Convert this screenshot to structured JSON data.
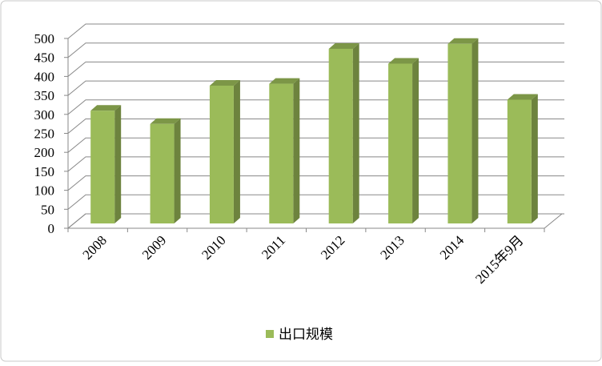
{
  "chart_data": {
    "type": "bar3d",
    "categories": [
      "2008",
      "2009",
      "2010",
      "2011",
      "2012",
      "2013",
      "2014",
      "2015年9月"
    ],
    "series": [
      {
        "name": "出口规模",
        "color": "#9bbb59",
        "values": [
          297,
          262,
          363,
          368,
          460,
          421,
          473,
          326
        ]
      }
    ],
    "ylim": [
      0,
      500
    ],
    "yticks": [
      0,
      50,
      100,
      150,
      200,
      250,
      300,
      350,
      400,
      450,
      500
    ],
    "grid": true,
    "legend": "bottom"
  }
}
